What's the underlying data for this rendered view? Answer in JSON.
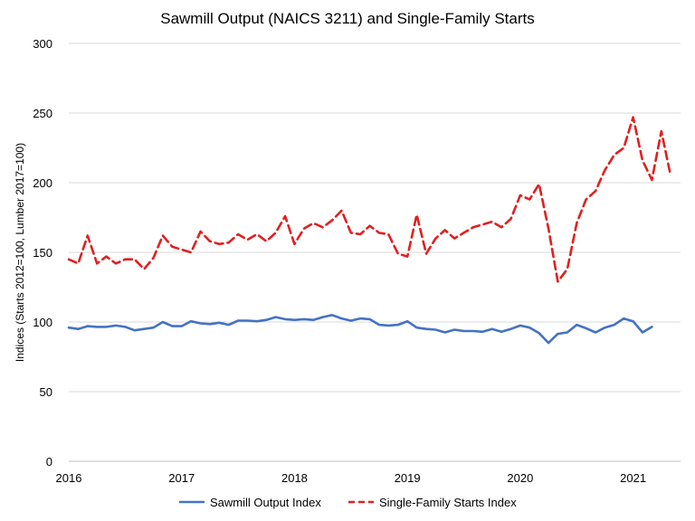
{
  "chart_data": {
    "type": "line",
    "title": "Sawmill Output (NAICS 3211) and Single-Family Starts",
    "xlabel": "",
    "ylabel": "Indices (Starts 2012=100, Lumber 2017=100)",
    "ylim": [
      0,
      300
    ],
    "yticks": [
      0,
      50,
      100,
      150,
      200,
      250,
      300
    ],
    "xlim": [
      2016,
      2021.42
    ],
    "xticks": [
      2016,
      2017,
      2018,
      2019,
      2020,
      2021
    ],
    "grid": true,
    "legend_position": "bottom",
    "series": [
      {
        "name": "Sawmill Output Index",
        "color": "#4472C4",
        "dash": "solid",
        "x": [
          2016.0,
          2016.083,
          2016.167,
          2016.25,
          2016.333,
          2016.417,
          2016.5,
          2016.583,
          2016.667,
          2016.75,
          2016.833,
          2016.917,
          2017.0,
          2017.083,
          2017.167,
          2017.25,
          2017.333,
          2017.417,
          2017.5,
          2017.583,
          2017.667,
          2017.75,
          2017.833,
          2017.917,
          2018.0,
          2018.083,
          2018.167,
          2018.25,
          2018.333,
          2018.417,
          2018.5,
          2018.583,
          2018.667,
          2018.75,
          2018.833,
          2018.917,
          2019.0,
          2019.083,
          2019.167,
          2019.25,
          2019.333,
          2019.417,
          2019.5,
          2019.583,
          2019.667,
          2019.75,
          2019.833,
          2019.917,
          2020.0,
          2020.083,
          2020.167,
          2020.25,
          2020.333,
          2020.417,
          2020.5,
          2020.583,
          2020.667,
          2020.75,
          2020.833,
          2020.917,
          2021.0,
          2021.083,
          2021.167
        ],
        "values": [
          96,
          95,
          97,
          96.5,
          96.5,
          97.5,
          96.5,
          94,
          95,
          96,
          100,
          97,
          97,
          100.5,
          99,
          98.5,
          99.5,
          98,
          101,
          101,
          100.5,
          101.5,
          103.5,
          102,
          101.5,
          102,
          101.5,
          103.5,
          105,
          102.5,
          101,
          102.5,
          102,
          98,
          97.5,
          98,
          100.5,
          96,
          95,
          94.5,
          92.5,
          94.5,
          93.5,
          93.5,
          93,
          95,
          93,
          95,
          97.5,
          96,
          92,
          85,
          91.5,
          92.5,
          98,
          95.5,
          92.5,
          96,
          98,
          102.5,
          100.5,
          92.5,
          96.5
        ]
      },
      {
        "name": "Single-Family Starts Index",
        "color": "#E02020",
        "dash": "dashed",
        "x": [
          2016.0,
          2016.083,
          2016.167,
          2016.25,
          2016.333,
          2016.417,
          2016.5,
          2016.583,
          2016.667,
          2016.75,
          2016.833,
          2016.917,
          2017.0,
          2017.083,
          2017.167,
          2017.25,
          2017.333,
          2017.417,
          2017.5,
          2017.583,
          2017.667,
          2017.75,
          2017.833,
          2017.917,
          2018.0,
          2018.083,
          2018.167,
          2018.25,
          2018.333,
          2018.417,
          2018.5,
          2018.583,
          2018.667,
          2018.75,
          2018.833,
          2018.917,
          2019.0,
          2019.083,
          2019.167,
          2019.25,
          2019.333,
          2019.417,
          2019.5,
          2019.583,
          2019.667,
          2019.75,
          2019.833,
          2019.917,
          2020.0,
          2020.083,
          2020.167,
          2020.25,
          2020.333,
          2020.417,
          2020.5,
          2020.583,
          2020.667,
          2020.75,
          2020.833,
          2020.917,
          2021.0,
          2021.083,
          2021.167,
          2021.25,
          2021.333
        ],
        "values": [
          145,
          142,
          162,
          142,
          147,
          142,
          145,
          145,
          138,
          146,
          162,
          154,
          152,
          150,
          165,
          158,
          156,
          157,
          163,
          159,
          163,
          158,
          164,
          176,
          156,
          167,
          171,
          168,
          173,
          180,
          164,
          163,
          169,
          164,
          163,
          149,
          147,
          177,
          149,
          160,
          166,
          160,
          164,
          168,
          170,
          172,
          168,
          174,
          191,
          188,
          199,
          167,
          129,
          138,
          171,
          188,
          194,
          209,
          220,
          225,
          247,
          216,
          202,
          237,
          205
        ]
      }
    ]
  }
}
